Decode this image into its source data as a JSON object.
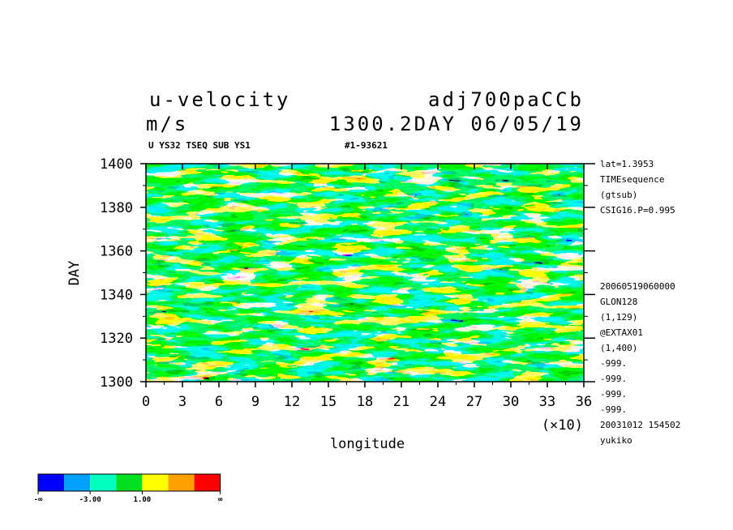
{
  "header": {
    "title_left": "u-velocity",
    "title_right": "adj700paCCb",
    "units": "m/s",
    "time_label": "1300.2DAY 06/05/19",
    "subtitle_left": "U YS32 TSEQ SUB YS1",
    "subtitle_right": "#1-93621"
  },
  "side_info_top": [
    "lat=1.3953",
    "TIMEsequence",
    "(gtsub)",
    "CSIG16.P=0.995"
  ],
  "side_info_bottom": [
    "20060519060000",
    "GLON128",
    "(1,129)",
    "@EXTAX01",
    "(1,400)",
    "-999.",
    "-999.",
    "-999.",
    "-999.",
    "20031012 154502",
    "yukiko"
  ],
  "colors": {
    "levels": [
      "#0000ff",
      "#00a0ff",
      "#00ffc0",
      "#00e020",
      "#ffff00",
      "#ffa000",
      "#ff0000"
    ]
  },
  "colorbar": {
    "labels": [
      "-∞",
      "-3.00",
      "1.00",
      "∞"
    ]
  },
  "chart_data": {
    "type": "heatmap",
    "title": "u-velocity",
    "xlabel": "longitude",
    "ylabel": "DAY",
    "x_multiplier_label": "(×10)",
    "xlim": [
      0,
      36
    ],
    "ylim": [
      1300,
      1400
    ],
    "x_ticks": [
      "0",
      "3",
      "6",
      "9",
      "12",
      "15",
      "18",
      "21",
      "24",
      "27",
      "30",
      "33",
      "36"
    ],
    "y_ticks": [
      "1300",
      "1320",
      "1340",
      "1360",
      "1380",
      "1400"
    ],
    "grid": false
  }
}
